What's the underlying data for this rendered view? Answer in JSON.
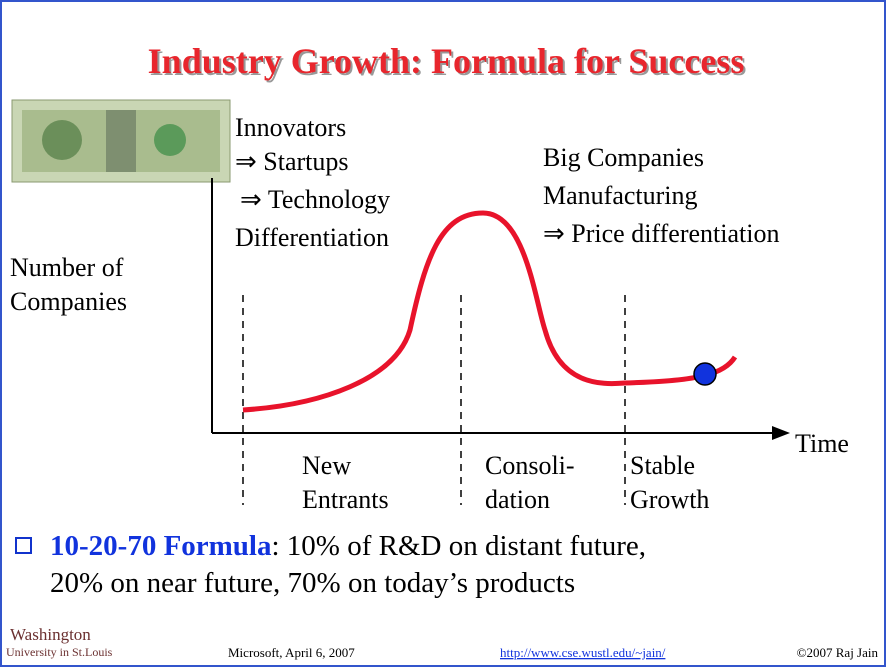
{
  "title": "Industry Growth: Formula for Success",
  "innovators": [
    "Innovators",
    "⇒ Startups",
    " ⇒ Technology",
    "Differentiation"
  ],
  "big_companies": [
    "Big Companies",
    "Manufacturing",
    " ⇒ Price differentiation"
  ],
  "y_axis_label": [
    "Number of",
    "Companies"
  ],
  "x_axis_label": "Time",
  "phases": [
    [
      "New",
      "Entrants"
    ],
    [
      "Consoli-",
      "dation"
    ],
    [
      "Stable",
      "Growth"
    ]
  ],
  "bullet": {
    "bold": "10-20-70 Formula",
    "line1": ": 10% of R&D on distant future,",
    "line2": "20% on near future, 70% on today’s products"
  },
  "footer": {
    "logo_top": "Washington",
    "logo_bottom": "University in St.Louis",
    "event": "Microsoft, April 6, 2007",
    "url": "http://www.cse.wustl.edu/~jain/",
    "copyright": "©2007 Raj Jain"
  }
}
